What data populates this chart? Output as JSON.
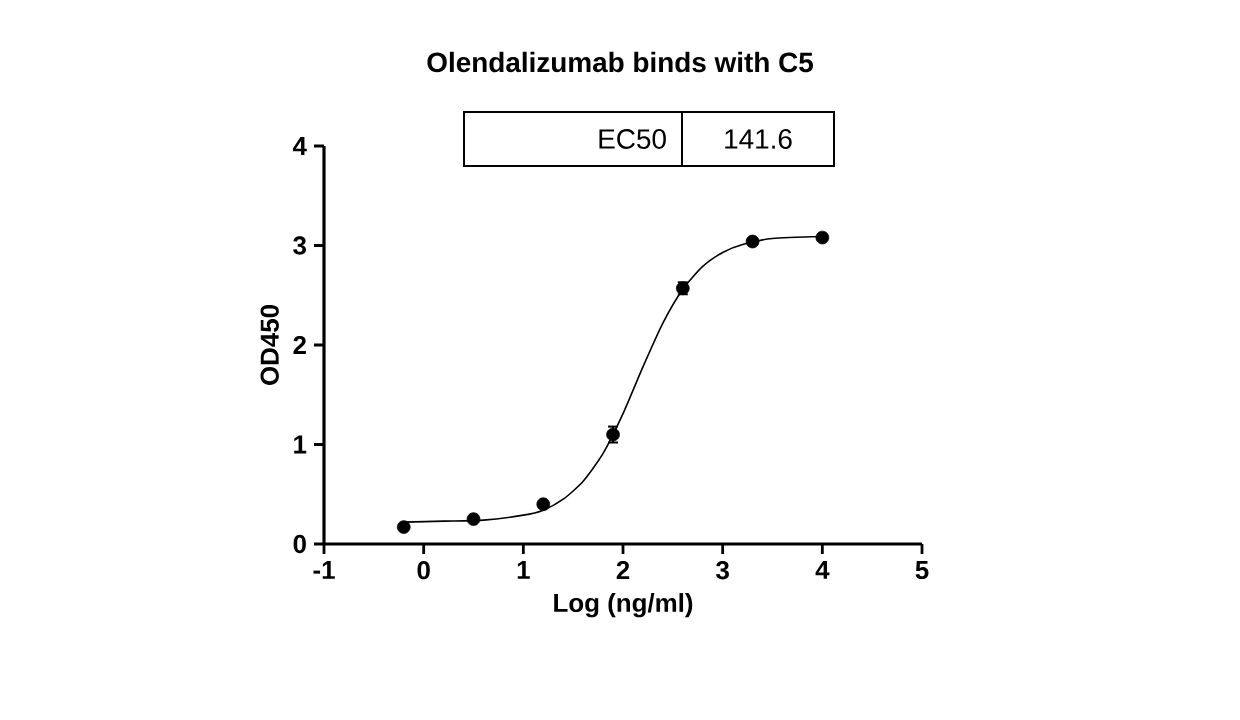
{
  "chart_data": {
    "type": "scatter",
    "title": "Olendalizumab binds with C5",
    "xlabel": "Log (ng/ml)",
    "ylabel": "OD450",
    "xlim": [
      -1,
      5
    ],
    "ylim": [
      0,
      4
    ],
    "xticks": [
      -1,
      0,
      1,
      2,
      3,
      4,
      5
    ],
    "yticks": [
      0,
      1,
      2,
      3,
      4
    ],
    "grid": false,
    "marker": "circle",
    "annotations": [
      "EC50",
      "141.6"
    ],
    "series": [
      {
        "type": "scatter",
        "color": "#000000",
        "x": [
          -0.2,
          0.5,
          1.2,
          1.9,
          2.6,
          3.3,
          4.0
        ],
        "values": [
          0.17,
          0.25,
          0.4,
          1.1,
          2.57,
          3.04,
          3.08
        ],
        "errors": [
          null,
          null,
          null,
          0.08,
          0.06,
          null,
          null
        ]
      },
      {
        "type": "line",
        "color": "#000000",
        "marker": "none",
        "x": [
          -0.2,
          0.2,
          0.6,
          1.0,
          1.2,
          1.4,
          1.6,
          1.8,
          2.0,
          2.2,
          2.4,
          2.6,
          2.8,
          3.0,
          3.2,
          3.5,
          4.0
        ],
        "values": [
          0.22,
          0.23,
          0.24,
          0.29,
          0.34,
          0.45,
          0.63,
          0.91,
          1.31,
          1.78,
          2.22,
          2.56,
          2.79,
          2.93,
          3.01,
          3.07,
          3.09
        ]
      }
    ]
  }
}
